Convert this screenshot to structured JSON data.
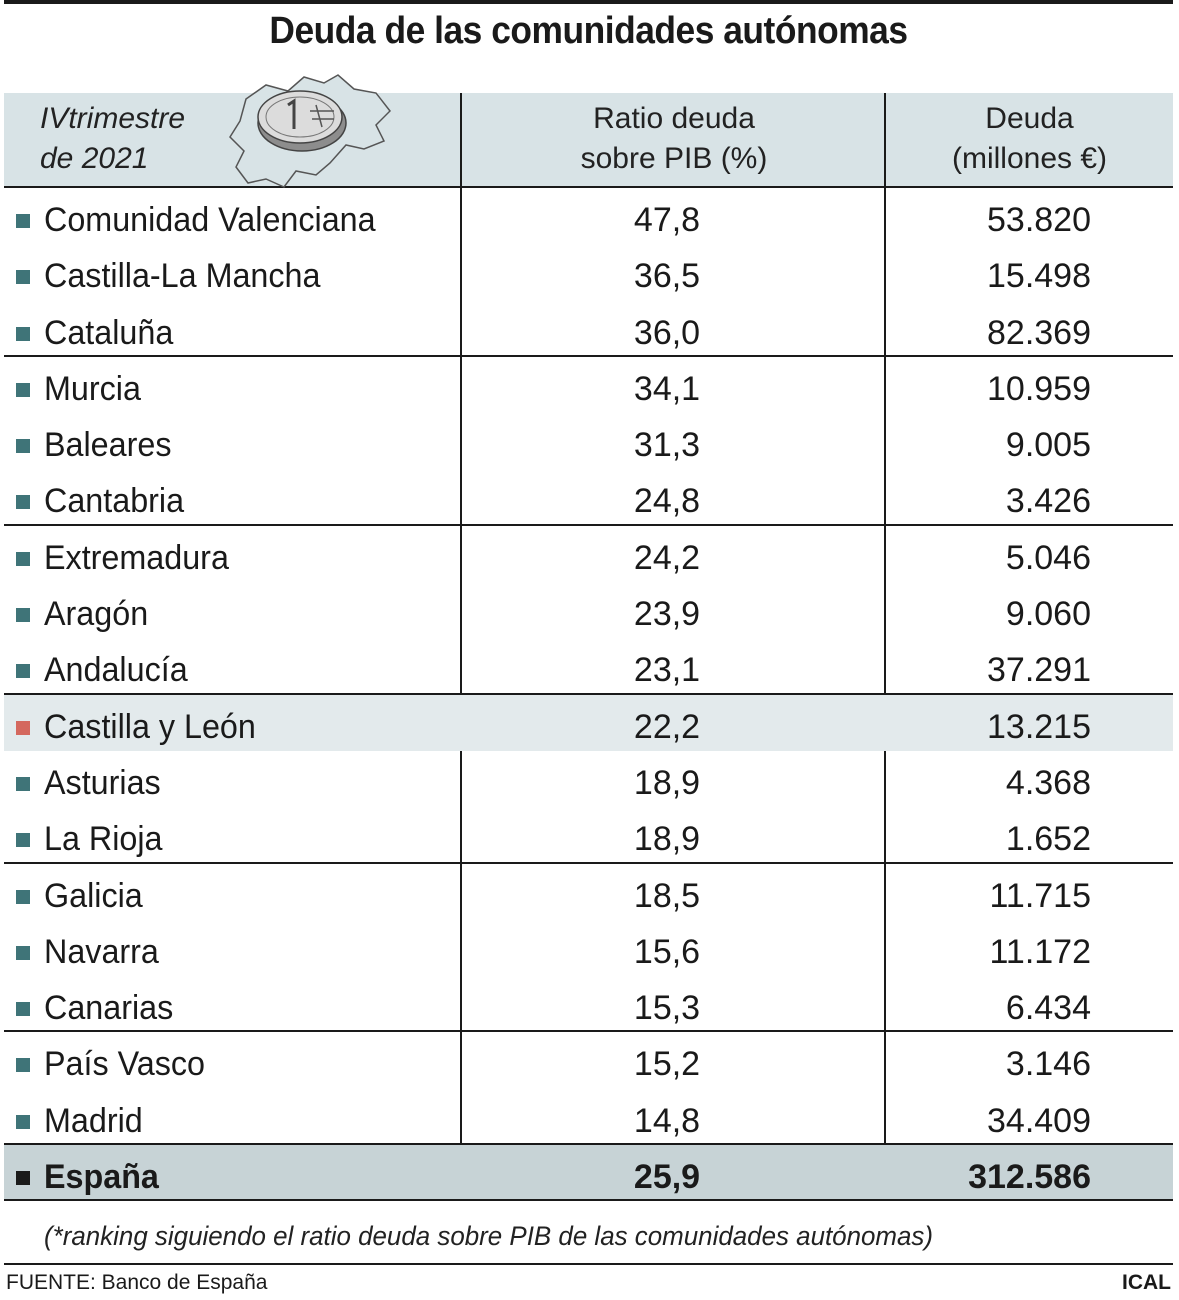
{
  "title": "Deuda de las comunidades autónomas",
  "colors": {
    "bullet": "#3f7478",
    "bullet_highlight": "#d4685e",
    "bullet_total": "#1a1a1a",
    "header_bg": "#d8e3e6",
    "highlight_bg": "#e3eaec",
    "total_bg": "#c7d3d6"
  },
  "chart_data": {
    "type": "table",
    "period_line1": "IVtrimestre",
    "period_line2": "de 2021",
    "columns": [
      {
        "line1": "Ratio deuda",
        "line2": "sobre PIB (%)"
      },
      {
        "line1": "Deuda",
        "line2": "(millones €)"
      }
    ],
    "rows": [
      {
        "name": "Comunidad Valenciana",
        "ratio": "47,8",
        "debt": "53.820"
      },
      {
        "name": "Castilla-La Mancha",
        "ratio": "36,5",
        "debt": "15.498"
      },
      {
        "name": "Cataluña",
        "ratio": "36,0",
        "debt": "82.369"
      },
      {
        "name": "Murcia",
        "ratio": "34,1",
        "debt": "10.959"
      },
      {
        "name": "Baleares",
        "ratio": "31,3",
        "debt": "9.005"
      },
      {
        "name": "Cantabria",
        "ratio": "24,8",
        "debt": "3.426"
      },
      {
        "name": "Extremadura",
        "ratio": "24,2",
        "debt": "5.046"
      },
      {
        "name": "Aragón",
        "ratio": "23,9",
        "debt": "9.060"
      },
      {
        "name": "Andalucía",
        "ratio": "23,1",
        "debt": "37.291"
      },
      {
        "name": "Castilla y León",
        "ratio": "22,2",
        "debt": "13.215",
        "highlight": true
      },
      {
        "name": "Asturias",
        "ratio": "18,9",
        "debt": "4.368"
      },
      {
        "name": "La Rioja",
        "ratio": "18,9",
        "debt": "1.652"
      },
      {
        "name": "Galicia",
        "ratio": "18,5",
        "debt": "11.715"
      },
      {
        "name": "Navarra",
        "ratio": "15,6",
        "debt": "11.172"
      },
      {
        "name": "Canarias",
        "ratio": "15,3",
        "debt": "6.434"
      },
      {
        "name": "País Vasco",
        "ratio": "15,2",
        "debt": "3.146"
      },
      {
        "name": "Madrid",
        "ratio": "14,8",
        "debt": "34.409"
      },
      {
        "name": "España",
        "ratio": "25,9",
        "debt": "312.586",
        "total": true
      }
    ]
  },
  "footnote": "(*ranking siguiendo el ratio deuda sobre PIB de las comunidades autónomas)",
  "source": "FUENTE: Banco de España",
  "credit": "ICAL"
}
